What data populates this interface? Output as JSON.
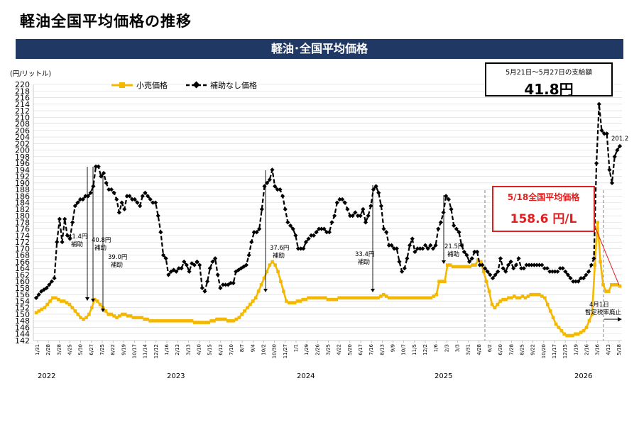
{
  "page_title": "軽油全国平均価格の推移",
  "banner_title": "軽油･全国平均価格",
  "y_unit": "(円/リットル)",
  "subsidy_box": {
    "label": "5月21日～5月27日の支給額",
    "value": "41.8円"
  },
  "price_box": {
    "label": "5/18全国平均価格",
    "value": "158.6 円/L"
  },
  "end_label": "201.2",
  "tax_note_line1": "4月1日",
  "tax_note_line2": "暫定税率廃止",
  "colors": {
    "retail": "#f5b800",
    "no_subsidy": "#000000",
    "banner": "#1f3864",
    "highlight": "#e02020"
  },
  "chart_data": {
    "type": "line",
    "ylim": [
      142,
      220
    ],
    "y_ticks": [
      142,
      144,
      146,
      148,
      150,
      152,
      154,
      156,
      158,
      160,
      162,
      164,
      166,
      168,
      170,
      172,
      174,
      176,
      178,
      180,
      182,
      184,
      186,
      188,
      190,
      192,
      194,
      196,
      198,
      200,
      202,
      204,
      206,
      208,
      210,
      212,
      214,
      216,
      218,
      220
    ],
    "x_ticks": [
      "1/31",
      "2/28",
      "3/28",
      "4/25",
      "5/30",
      "6/27",
      "7/25",
      "8/22",
      "9/19",
      "10/17",
      "11/14",
      "12/12",
      "1/16",
      "2/13",
      "3/13",
      "4/10",
      "5/15",
      "6/12",
      "7/10",
      "8/7",
      "9/4",
      "10/2",
      "10/30",
      "11/27",
      "1/1",
      "1/29",
      "2/26",
      "3/25",
      "4/22",
      "5/20",
      "6/17",
      "7/16",
      "8/13",
      "9/9",
      "10/7",
      "11/5",
      "12/2",
      "1/6",
      "2/3",
      "3/3",
      "3/31",
      "4/28",
      "6/2",
      "6/30",
      "7/28",
      "8/25",
      "9/22",
      "10/20",
      "11/17",
      "12/15",
      "1/19",
      "2/16",
      "3/16",
      "4/13",
      "5/18"
    ],
    "years": [
      "2022",
      "2023",
      "2024",
      "2025",
      "2026"
    ],
    "series": [
      {
        "name": "小売価格",
        "values": [
          150.5,
          151,
          151.5,
          152,
          153,
          154,
          155,
          155,
          154.5,
          154,
          154,
          153.5,
          153,
          152,
          151,
          150,
          149,
          148.5,
          149,
          150,
          152,
          154.5,
          154,
          153,
          152,
          151,
          150,
          150,
          149.5,
          149,
          149.5,
          150,
          150,
          149.5,
          149.5,
          149,
          149,
          149,
          149,
          148.5,
          148.5,
          148,
          148,
          148,
          148,
          148,
          148,
          148,
          148,
          148,
          148,
          148,
          148,
          148,
          148,
          148,
          148,
          147.5,
          147.5,
          147.5,
          147.5,
          147.5,
          147.5,
          148,
          148,
          148.5,
          148.5,
          148.5,
          148.5,
          148,
          148,
          148,
          148.5,
          149,
          150,
          151,
          152,
          153,
          154,
          155,
          157,
          159,
          161,
          163,
          165,
          166,
          165,
          163,
          160,
          157,
          154,
          153.5,
          153.5,
          153.5,
          154,
          154,
          154.5,
          154.5,
          155,
          155,
          155,
          155,
          155,
          155,
          155,
          154.5,
          154.5,
          154.5,
          154.5,
          155,
          155,
          155,
          155,
          155,
          155,
          155,
          155,
          155,
          155,
          155,
          155,
          155,
          155,
          155,
          155.5,
          156,
          155.5,
          155,
          155,
          155,
          155,
          155,
          155,
          155,
          155,
          155,
          155,
          155,
          155,
          155,
          155,
          155,
          155,
          155.5,
          156,
          160,
          160,
          160,
          165,
          165,
          164.5,
          164.5,
          164.5,
          164.5,
          164.5,
          164.5,
          164.5,
          165,
          165,
          166.5,
          166,
          163,
          160,
          157,
          153,
          152,
          153,
          154,
          154.5,
          154.5,
          155,
          155,
          155.5,
          155,
          155,
          155.5,
          155,
          155.5,
          156,
          156,
          156,
          156,
          155.5,
          155,
          153,
          151,
          149,
          147,
          146,
          145,
          144,
          143.5,
          143.5,
          143.5,
          144,
          144,
          144.5,
          145,
          146,
          148,
          150,
          165,
          178,
          166,
          159,
          157,
          157,
          159,
          159,
          159,
          158.6
        ]
      },
      {
        "name": "補助なし価格",
        "values": [
          155,
          156,
          157,
          157.5,
          158,
          159,
          160,
          161,
          172,
          179,
          172,
          179,
          174,
          173,
          178,
          183,
          184,
          185,
          185,
          186,
          186,
          187,
          189,
          195,
          195,
          192,
          193,
          190,
          188,
          188,
          187,
          185,
          181,
          184,
          182,
          186,
          186,
          185,
          185,
          184,
          183,
          186,
          187,
          186,
          185,
          184,
          184,
          180,
          175,
          168,
          167,
          162,
          163,
          163.5,
          163,
          164,
          164,
          166,
          165,
          163,
          165.5,
          165,
          166,
          165,
          158,
          157,
          160,
          164,
          166,
          167,
          162,
          158,
          159,
          159,
          159,
          159.5,
          159.5,
          163,
          163.5,
          164,
          164.5,
          165,
          168,
          172,
          175,
          175,
          176,
          182,
          189,
          190,
          191,
          194,
          189,
          188,
          188,
          186,
          182,
          178,
          177,
          176,
          174,
          170,
          170,
          170,
          172,
          173,
          174,
          174,
          175,
          176,
          176,
          176,
          175,
          175,
          178,
          180,
          184,
          185,
          185,
          184,
          182,
          180,
          180,
          181,
          180,
          180,
          182,
          178,
          180,
          183,
          188,
          189,
          187,
          183,
          176,
          175,
          171,
          171,
          170,
          170,
          166,
          163,
          164,
          167,
          171,
          173,
          169,
          170,
          170,
          170,
          171,
          170,
          171,
          170,
          171,
          176,
          178,
          181,
          186,
          185,
          182,
          177,
          176,
          175,
          171,
          169,
          168,
          166,
          167,
          169,
          169,
          165,
          165,
          164,
          163,
          162,
          161,
          162,
          163,
          167,
          164,
          163,
          165,
          166,
          164,
          165,
          167,
          164,
          164,
          165,
          165,
          165,
          165,
          165,
          165,
          165,
          164,
          164,
          163,
          163,
          163,
          163,
          164,
          164,
          163,
          162,
          161,
          160,
          160,
          160,
          161,
          161,
          162,
          163,
          165,
          167,
          196,
          214,
          206,
          205,
          205,
          194,
          190,
          198,
          200,
          201.2
        ]
      }
    ]
  },
  "annotations": [
    "41.4円 補助",
    "40.8円 補助",
    "39.0円 補助",
    "37.6円 補助",
    "33.4円 補助",
    "21.5円 補助"
  ]
}
